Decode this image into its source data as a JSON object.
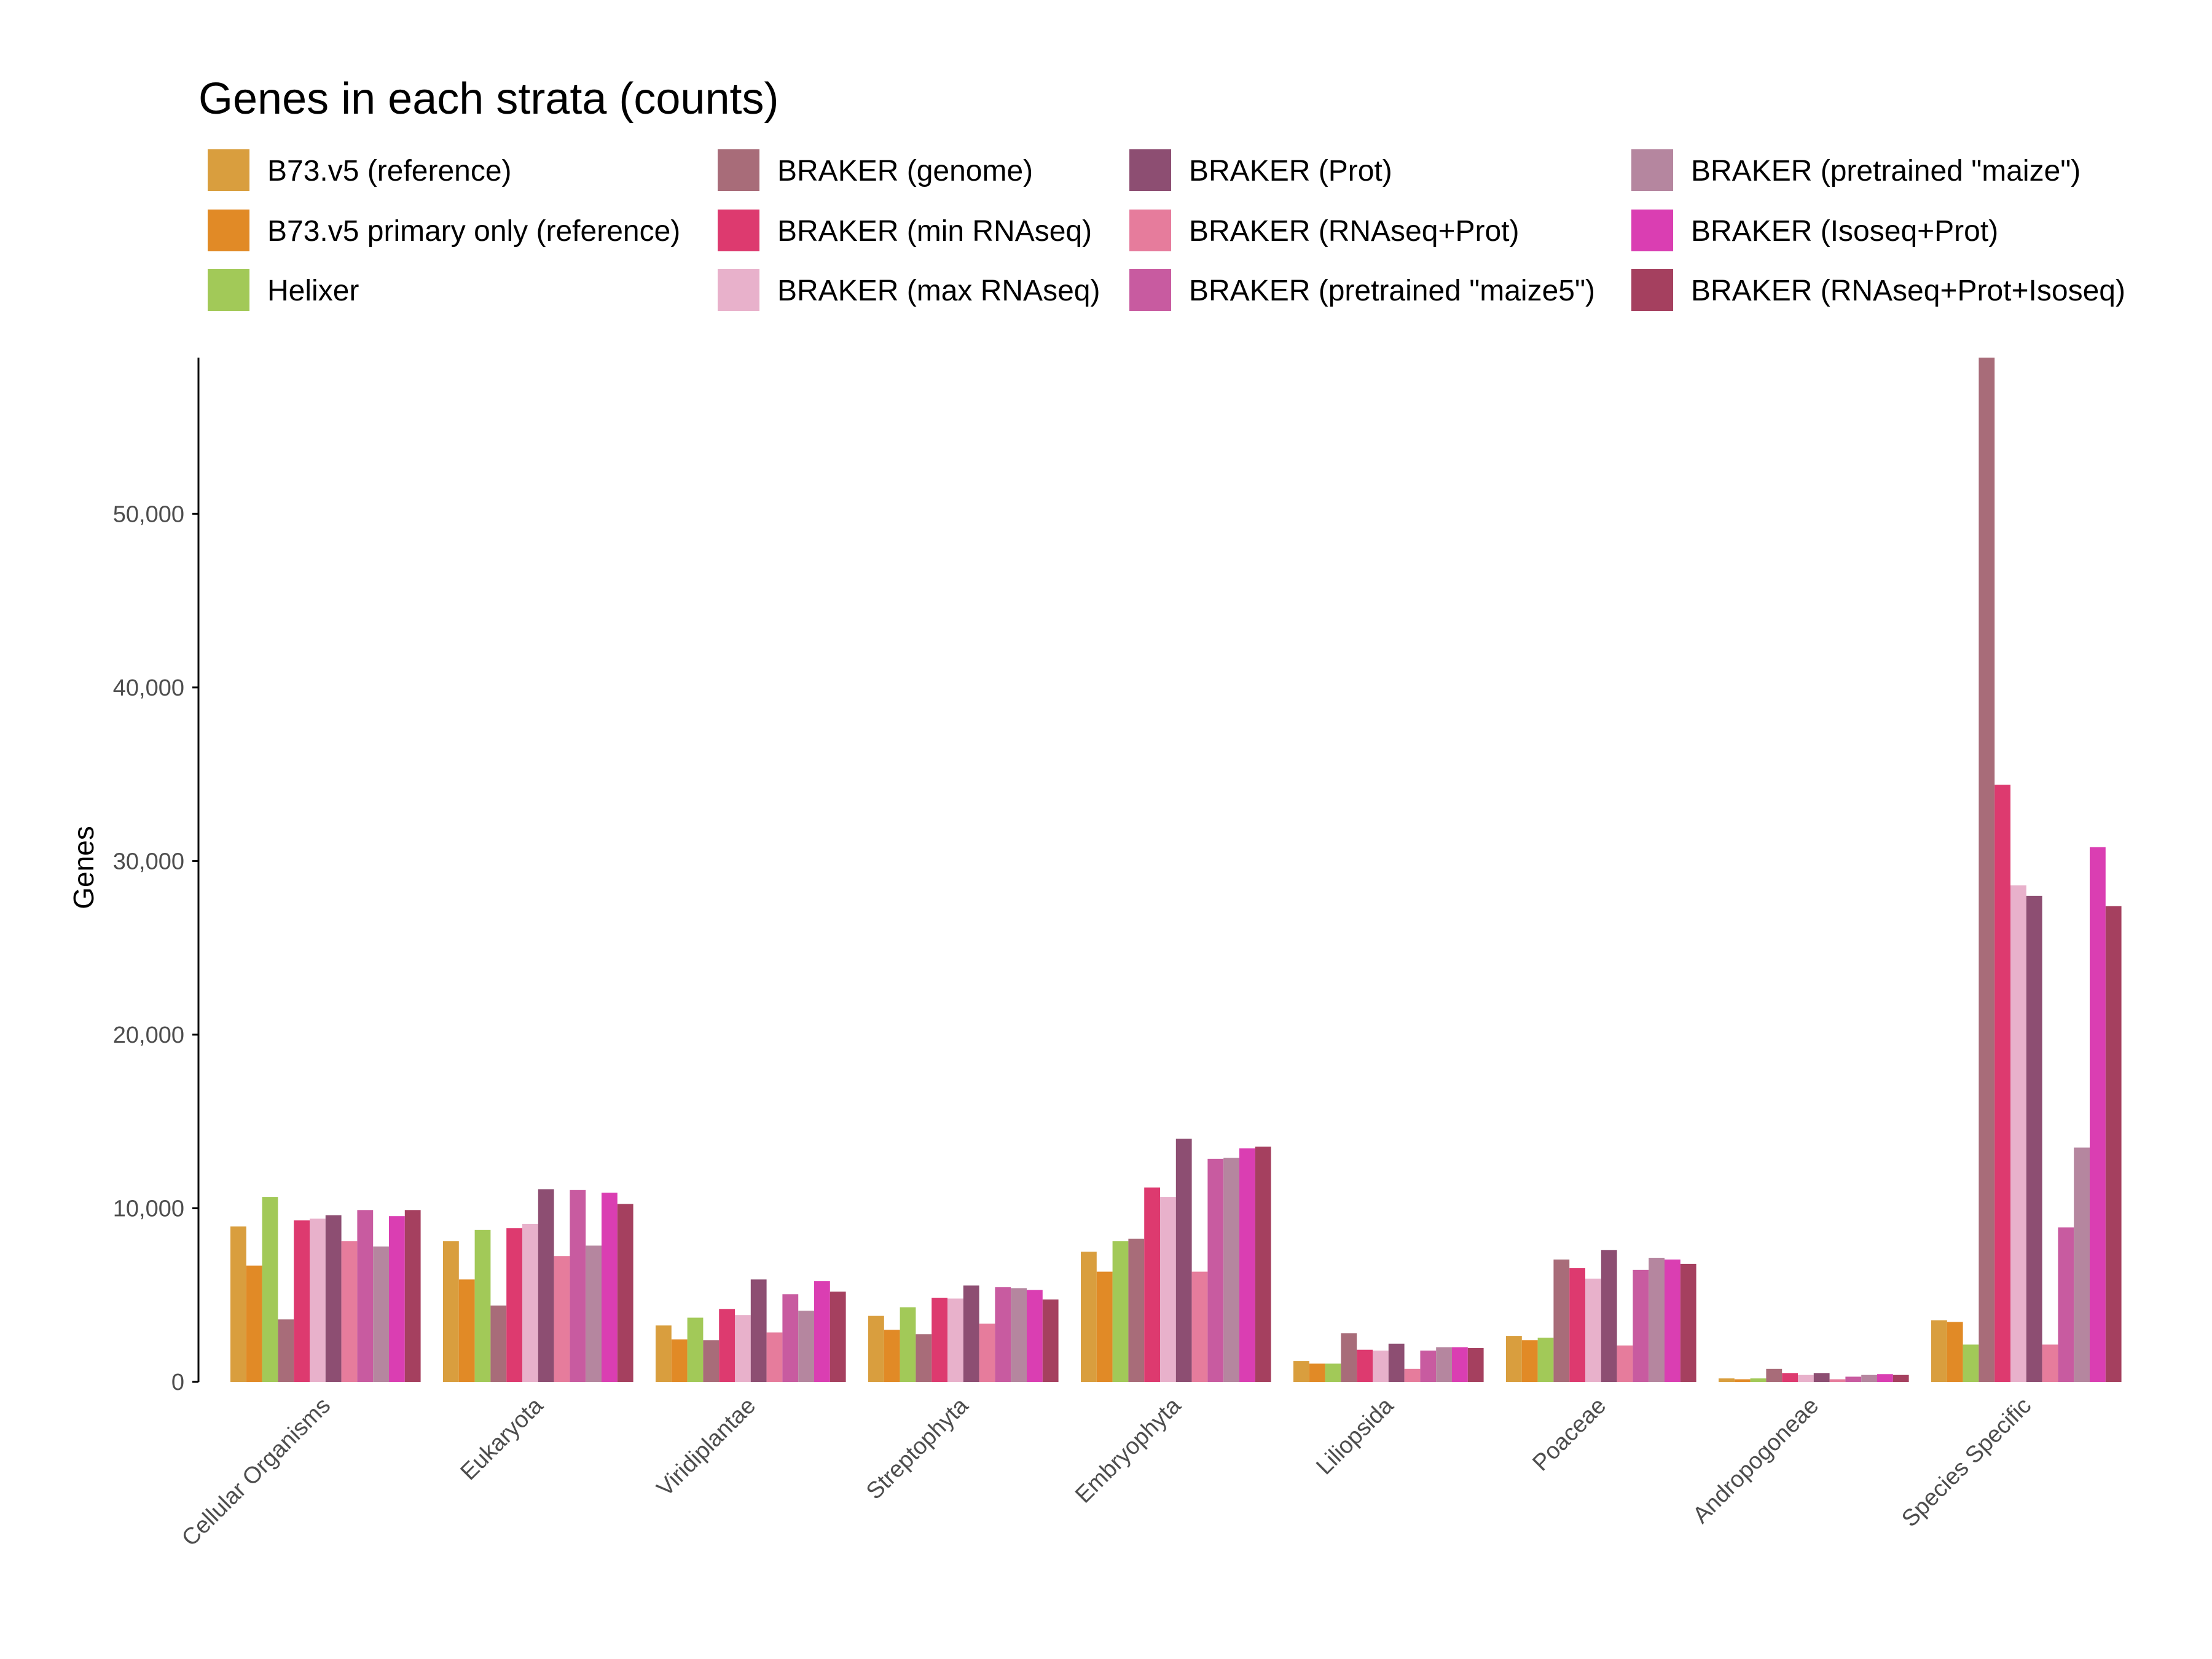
{
  "chart_data": {
    "type": "bar",
    "title": "Genes in each strata (counts)",
    "xlabel": "",
    "ylabel": "Genes",
    "ylim": [
      0,
      59000
    ],
    "yticks": [
      0,
      10000,
      20000,
      30000,
      40000,
      50000
    ],
    "ytick_labels": [
      "0",
      "10,000",
      "20,000",
      "30,000",
      "40,000",
      "50,000"
    ],
    "grid": false,
    "legend_position": "top",
    "categories": [
      "Cellular Organisms",
      "Eukaryota",
      "Viridiplantae",
      "Streptophyta",
      "Embryophyta",
      "Liliopsida",
      "Poaceae",
      "Andropogoneae",
      "Species Specific"
    ],
    "series": [
      {
        "name": "B73.v5 (reference)",
        "color": "#D99E3E",
        "values": [
          8950,
          8100,
          3250,
          3800,
          7500,
          1200,
          2650,
          200,
          3550
        ]
      },
      {
        "name": "B73.v5 primary only (reference)",
        "color": "#E18A26",
        "values": [
          6700,
          5900,
          2450,
          3000,
          6350,
          1050,
          2400,
          150,
          3450
        ]
      },
      {
        "name": "Helixer",
        "color": "#A2C958",
        "values": [
          10650,
          8750,
          3700,
          4300,
          8100,
          1050,
          2550,
          200,
          2150
        ]
      },
      {
        "name": "BRAKER (genome)",
        "color": "#A86C79",
        "values": [
          3600,
          4400,
          2400,
          2750,
          8250,
          2800,
          7050,
          750,
          59000
        ]
      },
      {
        "name": "BRAKER (min RNAseq)",
        "color": "#DD3A6F",
        "values": [
          9300,
          8850,
          4200,
          4850,
          11200,
          1850,
          6550,
          500,
          34400
        ]
      },
      {
        "name": "BRAKER (max RNAseq)",
        "color": "#E8B1CB",
        "values": [
          9400,
          9100,
          3850,
          4800,
          10650,
          1800,
          5950,
          400,
          28600
        ]
      },
      {
        "name": "BRAKER (Prot)",
        "color": "#8D4E72",
        "values": [
          9600,
          11100,
          5900,
          5550,
          14000,
          2200,
          7600,
          500,
          28000
        ]
      },
      {
        "name": "BRAKER (RNAseq+Prot)",
        "color": "#E67C9C",
        "values": [
          8100,
          7250,
          2850,
          3350,
          6350,
          750,
          2100,
          150,
          2150
        ]
      },
      {
        "name": "BRAKER (pretrained \"maize5\")",
        "color": "#C85BA0",
        "values": [
          9900,
          11050,
          5050,
          5450,
          12850,
          1800,
          6450,
          300,
          8900
        ]
      },
      {
        "name": "BRAKER (pretrained \"maize\")",
        "color": "#B5869F",
        "values": [
          7800,
          7850,
          4100,
          5400,
          12900,
          2000,
          7150,
          400,
          13500
        ]
      },
      {
        "name": "BRAKER (Isoseq+Prot)",
        "color": "#DA3EB2",
        "values": [
          9550,
          10900,
          5800,
          5300,
          13450,
          2000,
          7050,
          450,
          30800
        ]
      },
      {
        "name": "BRAKER (RNAseq+Prot+Isoseq)",
        "color": "#A5405F",
        "values": [
          9900,
          10250,
          5200,
          4750,
          13550,
          1950,
          6800,
          400,
          27400
        ]
      }
    ]
  }
}
